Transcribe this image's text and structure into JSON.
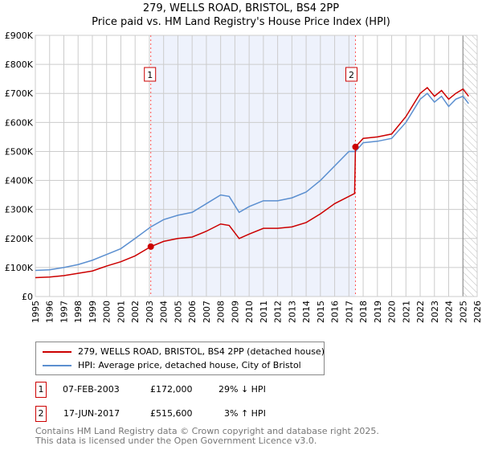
{
  "chart_data": {
    "type": "line",
    "title": "279, WELLS ROAD, BRISTOL, BS4 2PP",
    "subtitle": "Price paid vs. HM Land Registry's House Price Index (HPI)",
    "xlim": [
      1995,
      2026
    ],
    "ylim": [
      0,
      900000
    ],
    "x_ticks": [
      "1995",
      "1996",
      "1997",
      "1998",
      "1999",
      "2000",
      "2001",
      "2002",
      "2003",
      "2004",
      "2005",
      "2006",
      "2007",
      "2008",
      "2009",
      "2010",
      "2011",
      "2012",
      "2013",
      "2014",
      "2015",
      "2016",
      "2017",
      "2018",
      "2019",
      "2020",
      "2021",
      "2022",
      "2023",
      "2024",
      "2025",
      "2026"
    ],
    "y_ticks": [
      {
        "v": 0,
        "label": "£0"
      },
      {
        "v": 100000,
        "label": "£100K"
      },
      {
        "v": 200000,
        "label": "£200K"
      },
      {
        "v": 300000,
        "label": "£300K"
      },
      {
        "v": 400000,
        "label": "£400K"
      },
      {
        "v": 500000,
        "label": "£500K"
      },
      {
        "v": 600000,
        "label": "£600K"
      },
      {
        "v": 700000,
        "label": "£700K"
      },
      {
        "v": 800000,
        "label": "£800K"
      },
      {
        "v": 900000,
        "label": "£900K"
      }
    ],
    "grid": true,
    "series": [
      {
        "name": "279, WELLS ROAD, BRISTOL, BS4 2PP (detached house)",
        "color": "#cc0000",
        "x": [
          1995,
          1996,
          1997,
          1998,
          1999,
          2000,
          2001,
          2002,
          2003.1,
          2004,
          2005,
          2006,
          2007,
          2008,
          2008.6,
          2009.3,
          2010,
          2011,
          2012,
          2013,
          2014,
          2015,
          2016,
          2017.4,
          2017.46,
          2018,
          2019,
          2020,
          2021,
          2022,
          2022.5,
          2023,
          2023.5,
          2024,
          2024.5,
          2025,
          2025.4
        ],
        "y": [
          65000,
          67000,
          72000,
          80000,
          88000,
          105000,
          120000,
          140000,
          172000,
          190000,
          200000,
          205000,
          225000,
          250000,
          245000,
          200000,
          215000,
          235000,
          235000,
          240000,
          255000,
          285000,
          320000,
          355000,
          515600,
          545000,
          550000,
          560000,
          620000,
          700000,
          720000,
          690000,
          710000,
          680000,
          700000,
          715000,
          690000
        ]
      },
      {
        "name": "HPI: Average price, detached house, City of Bristol",
        "color": "#5b8fd0",
        "x": [
          1995,
          1996,
          1997,
          1998,
          1999,
          2000,
          2001,
          2002,
          2003.1,
          2004,
          2005,
          2006,
          2007,
          2008,
          2008.6,
          2009.3,
          2010,
          2011,
          2012,
          2013,
          2014,
          2015,
          2016,
          2017,
          2017.46,
          2018,
          2019,
          2020,
          2021,
          2022,
          2022.5,
          2023,
          2023.5,
          2024,
          2024.5,
          2025,
          2025.4
        ],
        "y": [
          90000,
          92000,
          100000,
          110000,
          125000,
          145000,
          165000,
          200000,
          240000,
          265000,
          280000,
          290000,
          320000,
          350000,
          345000,
          290000,
          310000,
          330000,
          330000,
          340000,
          360000,
          400000,
          450000,
          500000,
          500000,
          530000,
          535000,
          545000,
          600000,
          680000,
          700000,
          670000,
          690000,
          655000,
          680000,
          690000,
          665000
        ]
      }
    ],
    "sales": [
      {
        "id": "1",
        "x": 2003.1,
        "y": 172000
      },
      {
        "id": "2",
        "x": 2017.46,
        "y": 515600
      }
    ],
    "hatch_from": 2025.0
  },
  "legend": {
    "red": "279, WELLS ROAD, BRISTOL, BS4 2PP (detached house)",
    "blue": "HPI: Average price, detached house, City of Bristol"
  },
  "transactions": [
    {
      "id": "1",
      "date": "07-FEB-2003",
      "price": "£172,000",
      "hpi": "29% ↓ HPI"
    },
    {
      "id": "2",
      "date": "17-JUN-2017",
      "price": "£515,600",
      "hpi": "3% ↑ HPI"
    }
  ],
  "footer": {
    "line1": "Contains HM Land Registry data © Crown copyright and database right 2025.",
    "line2": "This data is licensed under the Open Government Licence v3.0."
  }
}
